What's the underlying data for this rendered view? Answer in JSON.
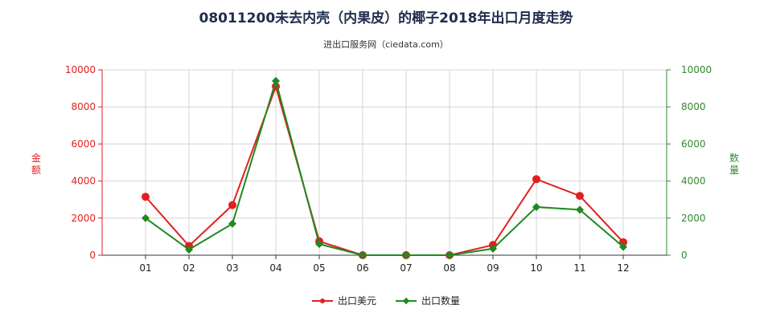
{
  "chart_data": {
    "type": "line",
    "title": "08011200未去内壳（内果皮）的椰子2018年出口月度走势",
    "subtitle": "进出口服务网（ciedata.com）",
    "categories": [
      "01",
      "02",
      "03",
      "04",
      "05",
      "06",
      "07",
      "08",
      "09",
      "10",
      "11",
      "12"
    ],
    "y_left": {
      "label": "金额",
      "min": 0,
      "max": 10000,
      "ticks": [
        0,
        2000,
        4000,
        6000,
        8000,
        10000
      ],
      "color": "#e02020"
    },
    "y_right": {
      "label": "数量",
      "min": 0,
      "max": 10000,
      "ticks": [
        0,
        2000,
        4000,
        6000,
        8000,
        10000
      ],
      "color": "#2f8a2f"
    },
    "series": [
      {
        "name": "出口美元",
        "axis": "left",
        "color": "#e02020",
        "marker": "circle",
        "values": [
          3150,
          500,
          2700,
          9100,
          750,
          0,
          0,
          0,
          550,
          4100,
          3200,
          700
        ]
      },
      {
        "name": "出口数量",
        "axis": "right",
        "color": "#1f8a1f",
        "marker": "diamond",
        "values": [
          2000,
          300,
          1700,
          9400,
          600,
          0,
          0,
          0,
          350,
          2600,
          2450,
          450
        ]
      }
    ],
    "grid": true,
    "legend_position": "bottom-center"
  }
}
